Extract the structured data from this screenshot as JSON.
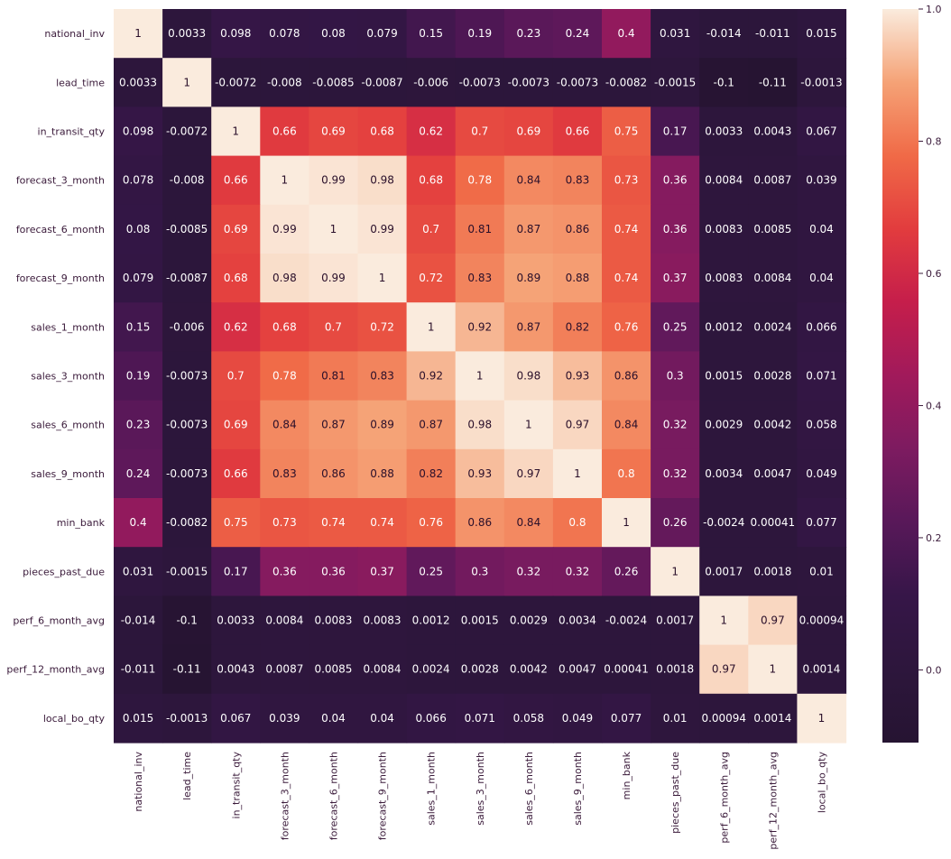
{
  "chart_data": {
    "type": "heatmap",
    "title": "",
    "xlabel": "",
    "ylabel": "",
    "variables": [
      "national_inv",
      "lead_time",
      "in_transit_qty",
      "forecast_3_month",
      "forecast_6_month",
      "forecast_9_month",
      "sales_1_month",
      "sales_3_month",
      "sales_6_month",
      "sales_9_month",
      "min_bank",
      "pieces_past_due",
      "perf_6_month_avg",
      "perf_12_month_avg",
      "local_bo_qty"
    ],
    "values": [
      [
        1,
        0.0033,
        0.098,
        0.078,
        0.08,
        0.079,
        0.15,
        0.19,
        0.23,
        0.24,
        0.4,
        0.031,
        -0.014,
        -0.011,
        0.015
      ],
      [
        0.0033,
        1,
        -0.0072,
        -0.008,
        -0.0085,
        -0.0087,
        -0.006,
        -0.0073,
        -0.0073,
        -0.0073,
        -0.0082,
        -0.0015,
        -0.1,
        -0.11,
        -0.0013
      ],
      [
        0.098,
        -0.0072,
        1,
        0.66,
        0.69,
        0.68,
        0.62,
        0.7,
        0.69,
        0.66,
        0.75,
        0.17,
        0.0033,
        0.0043,
        0.067
      ],
      [
        0.078,
        -0.008,
        0.66,
        1,
        0.99,
        0.98,
        0.68,
        0.78,
        0.84,
        0.83,
        0.73,
        0.36,
        0.0084,
        0.0087,
        0.039
      ],
      [
        0.08,
        -0.0085,
        0.69,
        0.99,
        1,
        0.99,
        0.7,
        0.81,
        0.87,
        0.86,
        0.74,
        0.36,
        0.0083,
        0.0085,
        0.04
      ],
      [
        0.079,
        -0.0087,
        0.68,
        0.98,
        0.99,
        1,
        0.72,
        0.83,
        0.89,
        0.88,
        0.74,
        0.37,
        0.0083,
        0.0084,
        0.04
      ],
      [
        0.15,
        -0.006,
        0.62,
        0.68,
        0.7,
        0.72,
        1,
        0.92,
        0.87,
        0.82,
        0.76,
        0.25,
        0.0012,
        0.0024,
        0.066
      ],
      [
        0.19,
        -0.0073,
        0.7,
        0.78,
        0.81,
        0.83,
        0.92,
        1,
        0.98,
        0.93,
        0.86,
        0.3,
        0.0015,
        0.0028,
        0.071
      ],
      [
        0.23,
        -0.0073,
        0.69,
        0.84,
        0.87,
        0.89,
        0.87,
        0.98,
        1,
        0.97,
        0.84,
        0.32,
        0.0029,
        0.0042,
        0.058
      ],
      [
        0.24,
        -0.0073,
        0.66,
        0.83,
        0.86,
        0.88,
        0.82,
        0.93,
        0.97,
        1,
        0.8,
        0.32,
        0.0034,
        0.0047,
        0.049
      ],
      [
        0.4,
        -0.0082,
        0.75,
        0.73,
        0.74,
        0.74,
        0.76,
        0.86,
        0.84,
        0.8,
        1,
        0.26,
        -0.0024,
        0.00041,
        0.077
      ],
      [
        0.031,
        -0.0015,
        0.17,
        0.36,
        0.36,
        0.37,
        0.25,
        0.3,
        0.32,
        0.32,
        0.26,
        1,
        0.0017,
        0.0018,
        0.01
      ],
      [
        -0.014,
        -0.1,
        0.0033,
        0.0084,
        0.0083,
        0.0083,
        0.0012,
        0.0015,
        0.0029,
        0.0034,
        -0.0024,
        0.0017,
        1,
        0.97,
        0.00094
      ],
      [
        -0.011,
        -0.11,
        0.0043,
        0.0087,
        0.0085,
        0.0084,
        0.0024,
        0.0028,
        0.0042,
        0.0047,
        0.00041,
        0.0018,
        0.97,
        1,
        0.0014
      ],
      [
        0.015,
        -0.0013,
        0.067,
        0.039,
        0.04,
        0.04,
        0.066,
        0.071,
        0.058,
        0.049,
        0.077,
        0.01,
        0.00094,
        0.0014,
        1
      ]
    ],
    "colormap": "rocket",
    "vmin": -0.11,
    "vmax": 1.0,
    "colorbar_ticks": [
      "0.0",
      "0.2",
      "0.4",
      "0.6",
      "0.8",
      "1.0"
    ],
    "colorbar_tick_values": [
      0.0,
      0.2,
      0.4,
      0.6,
      0.8,
      1.0
    ],
    "annotated": true,
    "grid": false
  }
}
